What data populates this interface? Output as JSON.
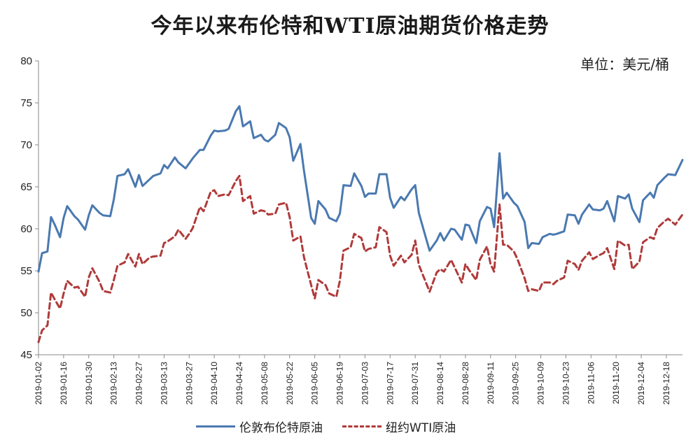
{
  "chart_data": {
    "type": "line",
    "title": "今年以来布伦特和WTI原油期货价格走势",
    "unit": "单位：美元/桶",
    "ylim": [
      45,
      80
    ],
    "yticks": [
      45,
      50,
      55,
      60,
      65,
      70,
      75,
      80
    ],
    "xlim": [
      "2019-01-02",
      "2019-12-27"
    ],
    "xticks": [
      "2019-01-02",
      "2019-01-16",
      "2019-01-30",
      "2019-02-13",
      "2019-02-27",
      "2019-03-13",
      "2019-03-27",
      "2019-04-10",
      "2019-04-24",
      "2019-05-08",
      "2019-05-22",
      "2019-06-05",
      "2019-06-19",
      "2019-07-03",
      "2019-07-17",
      "2019-07-31",
      "2019-08-14",
      "2019-08-28",
      "2019-09-11",
      "2019-09-25",
      "2019-10-09",
      "2019-10-23",
      "2019-11-06",
      "2019-11-20",
      "2019-12-04",
      "2019-12-18"
    ],
    "grid": false,
    "legend_position": "bottom",
    "series": [
      {
        "name": "伦敦布伦特原油",
        "color": "#4a79b0",
        "style": "solid",
        "points": [
          [
            "2019-01-02",
            54.9
          ],
          [
            "2019-01-04",
            57.1
          ],
          [
            "2019-01-07",
            57.3
          ],
          [
            "2019-01-09",
            61.4
          ],
          [
            "2019-01-11",
            60.5
          ],
          [
            "2019-01-14",
            59.0
          ],
          [
            "2019-01-16",
            61.3
          ],
          [
            "2019-01-18",
            62.7
          ],
          [
            "2019-01-22",
            61.5
          ],
          [
            "2019-01-24",
            61.1
          ],
          [
            "2019-01-28",
            59.9
          ],
          [
            "2019-01-30",
            61.6
          ],
          [
            "2019-02-01",
            62.8
          ],
          [
            "2019-02-05",
            61.9
          ],
          [
            "2019-02-07",
            61.6
          ],
          [
            "2019-02-11",
            61.5
          ],
          [
            "2019-02-13",
            63.5
          ],
          [
            "2019-02-15",
            66.3
          ],
          [
            "2019-02-19",
            66.5
          ],
          [
            "2019-02-21",
            67.1
          ],
          [
            "2019-02-25",
            65.0
          ],
          [
            "2019-02-27",
            66.4
          ],
          [
            "2019-03-01",
            65.1
          ],
          [
            "2019-03-05",
            65.9
          ],
          [
            "2019-03-07",
            66.3
          ],
          [
            "2019-03-11",
            66.6
          ],
          [
            "2019-03-13",
            67.6
          ],
          [
            "2019-03-15",
            67.2
          ],
          [
            "2019-03-19",
            68.5
          ],
          [
            "2019-03-21",
            67.9
          ],
          [
            "2019-03-25",
            67.2
          ],
          [
            "2019-03-27",
            67.8
          ],
          [
            "2019-03-29",
            68.4
          ],
          [
            "2019-04-02",
            69.4
          ],
          [
            "2019-04-04",
            69.4
          ],
          [
            "2019-04-08",
            71.1
          ],
          [
            "2019-04-10",
            71.7
          ],
          [
            "2019-04-12",
            71.6
          ],
          [
            "2019-04-16",
            71.7
          ],
          [
            "2019-04-18",
            71.9
          ],
          [
            "2019-04-22",
            74.0
          ],
          [
            "2019-04-24",
            74.6
          ],
          [
            "2019-04-26",
            72.2
          ],
          [
            "2019-04-30",
            72.8
          ],
          [
            "2019-05-02",
            70.8
          ],
          [
            "2019-05-06",
            71.2
          ],
          [
            "2019-05-08",
            70.6
          ],
          [
            "2019-05-10",
            70.4
          ],
          [
            "2019-05-14",
            71.2
          ],
          [
            "2019-05-16",
            72.6
          ],
          [
            "2019-05-20",
            72.0
          ],
          [
            "2019-05-22",
            70.9
          ],
          [
            "2019-05-24",
            68.1
          ],
          [
            "2019-05-28",
            70.1
          ],
          [
            "2019-05-30",
            66.9
          ],
          [
            "2019-06-03",
            61.3
          ],
          [
            "2019-06-05",
            60.6
          ],
          [
            "2019-06-07",
            63.3
          ],
          [
            "2019-06-11",
            62.3
          ],
          [
            "2019-06-13",
            61.3
          ],
          [
            "2019-06-17",
            60.9
          ],
          [
            "2019-06-19",
            61.8
          ],
          [
            "2019-06-21",
            65.2
          ],
          [
            "2019-06-25",
            65.1
          ],
          [
            "2019-06-27",
            66.6
          ],
          [
            "2019-07-01",
            65.1
          ],
          [
            "2019-07-03",
            63.8
          ],
          [
            "2019-07-05",
            64.2
          ],
          [
            "2019-07-09",
            64.2
          ],
          [
            "2019-07-11",
            66.5
          ],
          [
            "2019-07-15",
            66.5
          ],
          [
            "2019-07-17",
            63.7
          ],
          [
            "2019-07-19",
            62.5
          ],
          [
            "2019-07-23",
            63.8
          ],
          [
            "2019-07-25",
            63.4
          ],
          [
            "2019-07-29",
            64.7
          ],
          [
            "2019-07-31",
            65.2
          ],
          [
            "2019-08-02",
            61.9
          ],
          [
            "2019-08-06",
            58.9
          ],
          [
            "2019-08-08",
            57.4
          ],
          [
            "2019-08-12",
            58.6
          ],
          [
            "2019-08-14",
            59.5
          ],
          [
            "2019-08-16",
            58.6
          ],
          [
            "2019-08-20",
            60.0
          ],
          [
            "2019-08-22",
            59.9
          ],
          [
            "2019-08-26",
            58.7
          ],
          [
            "2019-08-28",
            60.5
          ],
          [
            "2019-08-30",
            60.4
          ],
          [
            "2019-09-03",
            58.3
          ],
          [
            "2019-09-05",
            60.9
          ],
          [
            "2019-09-09",
            62.6
          ],
          [
            "2019-09-11",
            62.4
          ],
          [
            "2019-09-13",
            60.2
          ],
          [
            "2019-09-16",
            69.0
          ],
          [
            "2019-09-18",
            63.6
          ],
          [
            "2019-09-20",
            64.3
          ],
          [
            "2019-09-24",
            63.1
          ],
          [
            "2019-09-26",
            62.7
          ],
          [
            "2019-09-30",
            60.8
          ],
          [
            "2019-10-02",
            57.7
          ],
          [
            "2019-10-04",
            58.3
          ],
          [
            "2019-10-08",
            58.2
          ],
          [
            "2019-10-10",
            59.0
          ],
          [
            "2019-10-14",
            59.4
          ],
          [
            "2019-10-16",
            59.3
          ],
          [
            "2019-10-18",
            59.4
          ],
          [
            "2019-10-22",
            59.7
          ],
          [
            "2019-10-24",
            61.7
          ],
          [
            "2019-10-28",
            61.6
          ],
          [
            "2019-10-30",
            60.6
          ],
          [
            "2019-11-01",
            61.7
          ],
          [
            "2019-11-05",
            62.9
          ],
          [
            "2019-11-07",
            62.3
          ],
          [
            "2019-11-11",
            62.2
          ],
          [
            "2019-11-13",
            62.4
          ],
          [
            "2019-11-15",
            63.3
          ],
          [
            "2019-11-19",
            60.9
          ],
          [
            "2019-11-21",
            63.9
          ],
          [
            "2019-11-25",
            63.6
          ],
          [
            "2019-11-27",
            64.1
          ],
          [
            "2019-11-29",
            62.4
          ],
          [
            "2019-12-03",
            60.8
          ],
          [
            "2019-12-05",
            63.4
          ],
          [
            "2019-12-09",
            64.3
          ],
          [
            "2019-12-11",
            63.7
          ],
          [
            "2019-12-13",
            65.2
          ],
          [
            "2019-12-17",
            66.1
          ],
          [
            "2019-12-19",
            66.5
          ],
          [
            "2019-12-23",
            66.4
          ],
          [
            "2019-12-27",
            68.2
          ]
        ]
      },
      {
        "name": "纽约WTI原油",
        "color": "#b03a3a",
        "style": "dashed",
        "points": [
          [
            "2019-01-02",
            46.5
          ],
          [
            "2019-01-04",
            47.9
          ],
          [
            "2019-01-07",
            48.5
          ],
          [
            "2019-01-09",
            52.4
          ],
          [
            "2019-01-11",
            51.6
          ],
          [
            "2019-01-14",
            50.5
          ],
          [
            "2019-01-16",
            52.3
          ],
          [
            "2019-01-18",
            53.8
          ],
          [
            "2019-01-22",
            53.0
          ],
          [
            "2019-01-24",
            53.1
          ],
          [
            "2019-01-28",
            51.9
          ],
          [
            "2019-01-30",
            54.2
          ],
          [
            "2019-02-01",
            55.3
          ],
          [
            "2019-02-05",
            53.7
          ],
          [
            "2019-02-07",
            52.6
          ],
          [
            "2019-02-11",
            52.4
          ],
          [
            "2019-02-13",
            53.9
          ],
          [
            "2019-02-15",
            55.6
          ],
          [
            "2019-02-19",
            56.0
          ],
          [
            "2019-02-21",
            57.0
          ],
          [
            "2019-02-25",
            55.5
          ],
          [
            "2019-02-27",
            57.0
          ],
          [
            "2019-03-01",
            55.8
          ],
          [
            "2019-03-05",
            56.6
          ],
          [
            "2019-03-07",
            56.7
          ],
          [
            "2019-03-11",
            56.8
          ],
          [
            "2019-03-13",
            58.3
          ],
          [
            "2019-03-15",
            58.5
          ],
          [
            "2019-03-19",
            59.1
          ],
          [
            "2019-03-21",
            59.9
          ],
          [
            "2019-03-25",
            58.8
          ],
          [
            "2019-03-27",
            59.4
          ],
          [
            "2019-03-29",
            60.1
          ],
          [
            "2019-04-02",
            62.6
          ],
          [
            "2019-04-04",
            62.1
          ],
          [
            "2019-04-08",
            64.4
          ],
          [
            "2019-04-10",
            64.6
          ],
          [
            "2019-04-12",
            63.9
          ],
          [
            "2019-04-16",
            64.1
          ],
          [
            "2019-04-18",
            64.0
          ],
          [
            "2019-04-22",
            65.7
          ],
          [
            "2019-04-24",
            66.3
          ],
          [
            "2019-04-26",
            63.3
          ],
          [
            "2019-04-30",
            63.9
          ],
          [
            "2019-05-02",
            61.8
          ],
          [
            "2019-05-06",
            62.2
          ],
          [
            "2019-05-08",
            62.1
          ],
          [
            "2019-05-10",
            61.7
          ],
          [
            "2019-05-14",
            61.8
          ],
          [
            "2019-05-16",
            62.9
          ],
          [
            "2019-05-20",
            63.1
          ],
          [
            "2019-05-22",
            61.4
          ],
          [
            "2019-05-24",
            58.6
          ],
          [
            "2019-05-28",
            59.1
          ],
          [
            "2019-05-30",
            56.6
          ],
          [
            "2019-06-03",
            53.3
          ],
          [
            "2019-06-05",
            51.7
          ],
          [
            "2019-06-07",
            53.9
          ],
          [
            "2019-06-11",
            53.3
          ],
          [
            "2019-06-13",
            52.3
          ],
          [
            "2019-06-17",
            51.9
          ],
          [
            "2019-06-19",
            53.8
          ],
          [
            "2019-06-21",
            57.4
          ],
          [
            "2019-06-25",
            57.8
          ],
          [
            "2019-06-27",
            59.4
          ],
          [
            "2019-07-01",
            58.9
          ],
          [
            "2019-07-03",
            57.3
          ],
          [
            "2019-07-05",
            57.6
          ],
          [
            "2019-07-09",
            57.8
          ],
          [
            "2019-07-11",
            60.2
          ],
          [
            "2019-07-15",
            59.6
          ],
          [
            "2019-07-17",
            56.8
          ],
          [
            "2019-07-19",
            55.6
          ],
          [
            "2019-07-23",
            56.8
          ],
          [
            "2019-07-25",
            56.0
          ],
          [
            "2019-07-29",
            56.9
          ],
          [
            "2019-07-31",
            58.6
          ],
          [
            "2019-08-02",
            55.7
          ],
          [
            "2019-08-06",
            53.6
          ],
          [
            "2019-08-08",
            52.5
          ],
          [
            "2019-08-12",
            54.8
          ],
          [
            "2019-08-14",
            55.2
          ],
          [
            "2019-08-16",
            54.9
          ],
          [
            "2019-08-20",
            56.3
          ],
          [
            "2019-08-22",
            55.4
          ],
          [
            "2019-08-26",
            53.6
          ],
          [
            "2019-08-28",
            55.8
          ],
          [
            "2019-08-30",
            55.1
          ],
          [
            "2019-09-03",
            53.9
          ],
          [
            "2019-09-05",
            56.3
          ],
          [
            "2019-09-09",
            57.9
          ],
          [
            "2019-09-11",
            55.8
          ],
          [
            "2019-09-13",
            54.9
          ],
          [
            "2019-09-16",
            62.9
          ],
          [
            "2019-09-18",
            58.1
          ],
          [
            "2019-09-20",
            58.1
          ],
          [
            "2019-09-24",
            57.3
          ],
          [
            "2019-09-26",
            56.4
          ],
          [
            "2019-09-30",
            54.1
          ],
          [
            "2019-10-02",
            52.6
          ],
          [
            "2019-10-04",
            52.8
          ],
          [
            "2019-10-08",
            52.6
          ],
          [
            "2019-10-10",
            53.6
          ],
          [
            "2019-10-14",
            53.6
          ],
          [
            "2019-10-16",
            53.4
          ],
          [
            "2019-10-18",
            53.8
          ],
          [
            "2019-10-22",
            54.2
          ],
          [
            "2019-10-24",
            56.2
          ],
          [
            "2019-10-28",
            55.8
          ],
          [
            "2019-10-30",
            55.1
          ],
          [
            "2019-11-01",
            56.2
          ],
          [
            "2019-11-05",
            57.2
          ],
          [
            "2019-11-07",
            56.4
          ],
          [
            "2019-11-11",
            56.9
          ],
          [
            "2019-11-13",
            57.1
          ],
          [
            "2019-11-15",
            57.7
          ],
          [
            "2019-11-19",
            55.2
          ],
          [
            "2019-11-21",
            58.6
          ],
          [
            "2019-11-25",
            58.0
          ],
          [
            "2019-11-27",
            58.1
          ],
          [
            "2019-11-29",
            55.2
          ],
          [
            "2019-12-03",
            56.1
          ],
          [
            "2019-12-05",
            58.4
          ],
          [
            "2019-12-09",
            59.0
          ],
          [
            "2019-12-11",
            58.8
          ],
          [
            "2019-12-13",
            60.1
          ],
          [
            "2019-12-17",
            60.9
          ],
          [
            "2019-12-19",
            61.2
          ],
          [
            "2019-12-23",
            60.5
          ],
          [
            "2019-12-27",
            61.7
          ]
        ]
      }
    ]
  }
}
